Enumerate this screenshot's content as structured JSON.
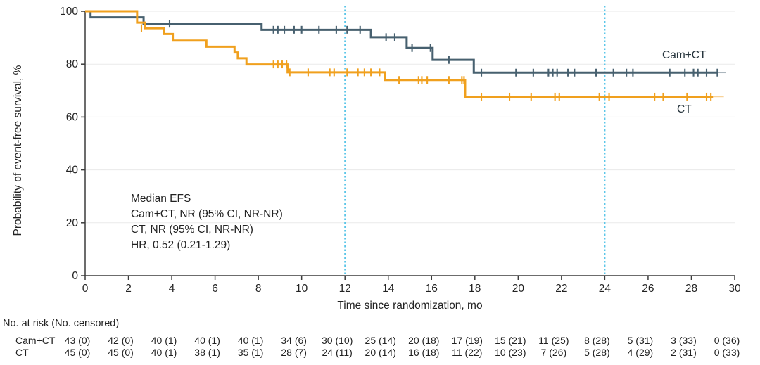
{
  "chart_data": {
    "type": "line",
    "subtype": "kaplan-meier-step",
    "title": "",
    "xlabel": "Time since randomization, mo",
    "ylabel": "Probability of event-free survival, %",
    "xlim": [
      0,
      30
    ],
    "ylim": [
      0,
      100
    ],
    "xticks": [
      0,
      2,
      4,
      6,
      8,
      10,
      12,
      14,
      16,
      18,
      20,
      22,
      24,
      26,
      28,
      30
    ],
    "yticks": [
      0,
      20,
      40,
      60,
      80,
      100
    ],
    "grid": "horizontal",
    "reference_lines_x": [
      12,
      24
    ],
    "reference_line_color": "#5BC6E8",
    "grid_color": "#EAEAEA",
    "axis_color": "#3c3c3c",
    "series": [
      {
        "name": "Cam+CT",
        "color": "#47606F",
        "steps": [
          [
            0,
            100
          ],
          [
            0.25,
            97.7
          ],
          [
            2.7,
            95.3
          ],
          [
            8.15,
            93.0
          ],
          [
            13.2,
            90.2
          ],
          [
            14.85,
            86.1
          ],
          [
            16.05,
            81.6
          ],
          [
            17.95,
            76.8
          ]
        ],
        "end_x": 29.25,
        "tail_end_x": 29.6,
        "censor_ticks": [
          [
            3.9,
            95.3
          ],
          [
            8.7,
            93.0
          ],
          [
            8.9,
            93.0
          ],
          [
            9.2,
            93.0
          ],
          [
            9.65,
            93.0
          ],
          [
            10.0,
            93.0
          ],
          [
            10.8,
            93.0
          ],
          [
            11.6,
            93.0
          ],
          [
            12.1,
            93.0
          ],
          [
            12.7,
            93.0
          ],
          [
            13.9,
            90.2
          ],
          [
            14.3,
            90.2
          ],
          [
            15.1,
            86.1
          ],
          [
            15.95,
            86.1
          ],
          [
            16.8,
            81.6
          ],
          [
            18.3,
            76.8
          ],
          [
            19.9,
            76.8
          ],
          [
            20.7,
            76.8
          ],
          [
            21.4,
            76.8
          ],
          [
            21.6,
            76.8
          ],
          [
            21.8,
            76.8
          ],
          [
            22.3,
            76.8
          ],
          [
            22.6,
            76.8
          ],
          [
            23.6,
            76.8
          ],
          [
            24.4,
            76.8
          ],
          [
            25.0,
            76.8
          ],
          [
            25.3,
            76.8
          ],
          [
            27.0,
            76.8
          ],
          [
            27.7,
            76.8
          ],
          [
            28.1,
            76.8
          ],
          [
            28.3,
            76.8
          ],
          [
            28.7,
            76.8
          ],
          [
            29.2,
            76.8
          ]
        ]
      },
      {
        "name": "CT",
        "color": "#F0A01E",
        "steps": [
          [
            0,
            100
          ],
          [
            2.4,
            95.7
          ],
          [
            2.75,
            93.6
          ],
          [
            3.65,
            91.4
          ],
          [
            4.05,
            88.9
          ],
          [
            5.6,
            86.6
          ],
          [
            6.9,
            84.4
          ],
          [
            7.05,
            82.2
          ],
          [
            7.45,
            79.9
          ],
          [
            9.35,
            76.9
          ],
          [
            13.85,
            74.0
          ],
          [
            17.55,
            67.7
          ]
        ],
        "end_x": 29.0,
        "tail_end_x": 29.5,
        "censor_ticks": [
          [
            2.6,
            93.6
          ],
          [
            8.7,
            79.9
          ],
          [
            8.9,
            79.9
          ],
          [
            9.1,
            79.9
          ],
          [
            9.3,
            79.9
          ],
          [
            9.45,
            76.9
          ],
          [
            10.3,
            76.9
          ],
          [
            11.3,
            76.9
          ],
          [
            11.5,
            76.9
          ],
          [
            12.1,
            76.9
          ],
          [
            12.6,
            76.9
          ],
          [
            12.9,
            76.9
          ],
          [
            13.2,
            76.9
          ],
          [
            13.6,
            76.9
          ],
          [
            14.5,
            74.0
          ],
          [
            15.4,
            74.0
          ],
          [
            15.55,
            74.0
          ],
          [
            15.8,
            74.0
          ],
          [
            16.8,
            74.0
          ],
          [
            17.4,
            74.0
          ],
          [
            17.5,
            74.0
          ],
          [
            18.3,
            67.7
          ],
          [
            19.6,
            67.7
          ],
          [
            20.6,
            67.7
          ],
          [
            21.7,
            67.7
          ],
          [
            21.9,
            67.7
          ],
          [
            23.75,
            67.7
          ],
          [
            24.2,
            67.7
          ],
          [
            26.3,
            67.7
          ],
          [
            26.7,
            67.7
          ],
          [
            27.8,
            67.7
          ],
          [
            28.7,
            67.7
          ],
          [
            28.9,
            67.7
          ]
        ]
      }
    ],
    "annotation": {
      "lines": [
        "Median EFS",
        "Cam+CT, NR (95% CI, NR-NR)",
        "CT, NR (95% CI, NR-NR)",
        "HR, 0.52 (0.21-1.29)"
      ]
    }
  },
  "risk_table": {
    "header": "No. at risk (No. censored)",
    "time_points": [
      0,
      2,
      4,
      6,
      8,
      10,
      12,
      14,
      16,
      18,
      20,
      22,
      24,
      26,
      28,
      30
    ],
    "rows": [
      {
        "label": "Cam+CT",
        "values": [
          "43 (0)",
          "42 (0)",
          "40 (1)",
          "40 (1)",
          "40 (1)",
          "34 (6)",
          "30 (10)",
          "25 (14)",
          "20 (18)",
          "17 (19)",
          "15 (21)",
          "11 (25)",
          "8 (28)",
          "5 (31)",
          "3 (33)",
          "0 (36)"
        ]
      },
      {
        "label": "CT",
        "values": [
          "45 (0)",
          "45 (0)",
          "40 (1)",
          "38 (1)",
          "35 (1)",
          "28 (7)",
          "24 (11)",
          "20 (14)",
          "16 (18)",
          "11 (22)",
          "10 (23)",
          "7 (26)",
          "5 (28)",
          "4 (29)",
          "2 (31)",
          "0 (33)"
        ]
      }
    ]
  }
}
